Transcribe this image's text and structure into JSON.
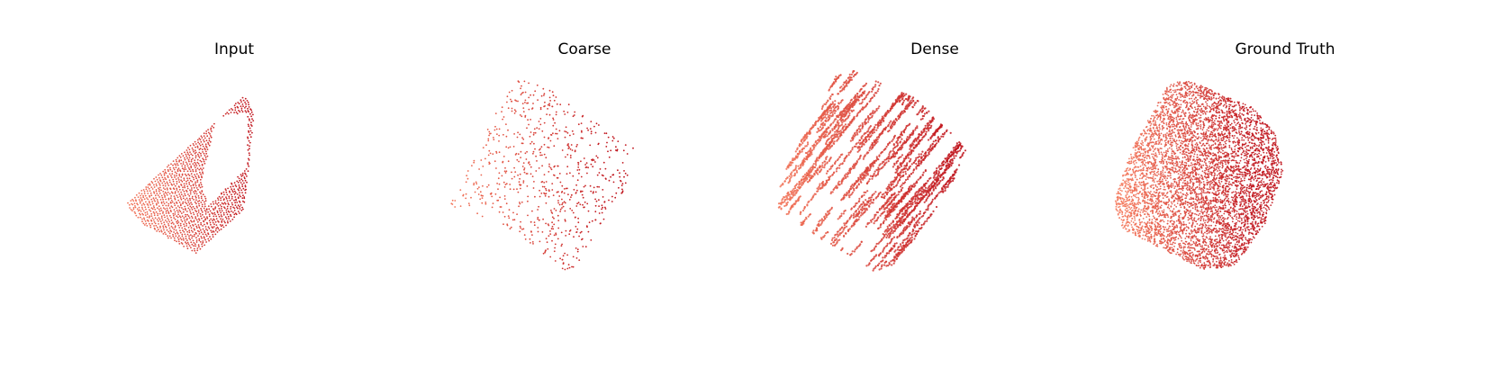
{
  "figure": {
    "panels": [
      {
        "id": "input",
        "title": "Input",
        "style": "sparse-regular",
        "color_light": "#f4775a",
        "color_dark": "#c0141c"
      },
      {
        "id": "coarse",
        "title": "Coarse",
        "style": "sparse-random",
        "color_light": "#f4775a",
        "color_dark": "#c0141c"
      },
      {
        "id": "dense",
        "title": "Dense",
        "style": "dense-streaks",
        "color_light": "#f4775a",
        "color_dark": "#c0141c"
      },
      {
        "id": "ground-truth",
        "title": "Ground Truth",
        "style": "dense-uniform",
        "color_light": "#f4775a",
        "color_dark": "#c0141c"
      }
    ]
  }
}
